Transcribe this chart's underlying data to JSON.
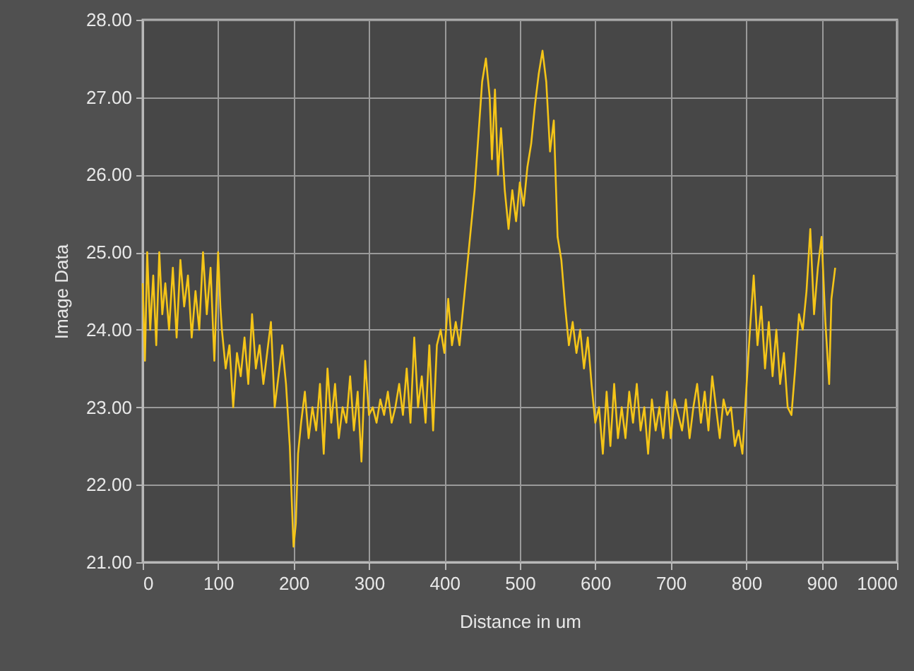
{
  "chart_data": {
    "type": "line",
    "xlabel": "Distance in um",
    "ylabel": "Image Data",
    "xlim": [
      0,
      1000
    ],
    "xticks": [
      0,
      100,
      200,
      300,
      400,
      500,
      600,
      700,
      800,
      900,
      1000
    ],
    "ylim": [
      21,
      28
    ],
    "yticks": [
      {
        "value": 21,
        "label": "21.00"
      },
      {
        "value": 22,
        "label": "22.00"
      },
      {
        "value": 23,
        "label": "23.00"
      },
      {
        "value": 24,
        "label": "24.00"
      },
      {
        "value": 25,
        "label": "25.00"
      },
      {
        "value": 26,
        "label": "26.00"
      },
      {
        "value": 27,
        "label": "27.00"
      },
      {
        "value": 28,
        "label": "28.00"
      }
    ],
    "grid": true,
    "x": [
      0,
      3,
      6,
      10,
      14,
      18,
      22,
      26,
      30,
      35,
      40,
      45,
      50,
      55,
      60,
      65,
      70,
      75,
      80,
      85,
      90,
      95,
      100,
      103,
      105,
      110,
      115,
      120,
      125,
      130,
      135,
      140,
      145,
      150,
      155,
      160,
      165,
      170,
      175,
      180,
      185,
      190,
      195,
      198,
      200,
      203,
      206,
      210,
      215,
      220,
      225,
      230,
      235,
      240,
      245,
      250,
      255,
      260,
      265,
      270,
      275,
      280,
      285,
      290,
      295,
      300,
      305,
      310,
      315,
      320,
      325,
      330,
      335,
      340,
      345,
      350,
      355,
      360,
      365,
      370,
      375,
      380,
      385,
      390,
      395,
      400,
      405,
      410,
      415,
      420,
      425,
      430,
      435,
      440,
      445,
      450,
      455,
      460,
      463,
      467,
      471,
      475,
      480,
      485,
      490,
      495,
      500,
      505,
      510,
      515,
      520,
      525,
      530,
      535,
      540,
      545,
      550,
      555,
      560,
      565,
      570,
      575,
      580,
      585,
      590,
      595,
      600,
      605,
      610,
      615,
      620,
      625,
      630,
      635,
      640,
      645,
      650,
      655,
      660,
      665,
      670,
      675,
      680,
      685,
      690,
      695,
      700,
      705,
      710,
      715,
      720,
      725,
      730,
      735,
      740,
      745,
      750,
      755,
      760,
      765,
      770,
      775,
      780,
      785,
      790,
      795,
      800,
      805,
      810,
      815,
      820,
      825,
      830,
      835,
      840,
      845,
      850,
      855,
      860,
      865,
      870,
      875,
      880,
      885,
      890,
      895,
      900,
      905,
      910,
      913,
      918
    ],
    "series": [
      {
        "color": "#f5c518",
        "values": [
          24.6,
          23.6,
          25.0,
          24.0,
          24.7,
          23.8,
          25.0,
          24.2,
          24.6,
          24.0,
          24.8,
          23.9,
          24.9,
          24.3,
          24.7,
          23.9,
          24.5,
          24.0,
          25.0,
          24.2,
          24.8,
          23.6,
          25.0,
          24.3,
          24.0,
          23.5,
          23.8,
          23.0,
          23.7,
          23.4,
          23.9,
          23.3,
          24.2,
          23.5,
          23.8,
          23.3,
          23.7,
          24.1,
          23.0,
          23.4,
          23.8,
          23.3,
          22.5,
          21.7,
          21.2,
          21.5,
          22.4,
          22.8,
          23.2,
          22.6,
          23.0,
          22.7,
          23.3,
          22.4,
          23.5,
          22.8,
          23.3,
          22.6,
          23.0,
          22.8,
          23.4,
          22.7,
          23.2,
          22.3,
          23.6,
          22.9,
          23.0,
          22.8,
          23.1,
          22.9,
          23.2,
          22.8,
          23.0,
          23.3,
          22.9,
          23.5,
          22.8,
          23.9,
          23.0,
          23.4,
          22.8,
          23.8,
          22.7,
          23.8,
          24.0,
          23.7,
          24.4,
          23.8,
          24.1,
          23.8,
          24.3,
          24.8,
          25.3,
          25.8,
          26.5,
          27.2,
          27.5,
          27.0,
          26.2,
          27.1,
          26.0,
          26.6,
          25.8,
          25.3,
          25.8,
          25.4,
          25.9,
          25.6,
          26.1,
          26.4,
          26.9,
          27.3,
          27.6,
          27.2,
          26.3,
          26.7,
          25.2,
          24.9,
          24.3,
          23.8,
          24.1,
          23.7,
          24.0,
          23.5,
          23.9,
          23.3,
          22.8,
          23.0,
          22.4,
          23.2,
          22.5,
          23.3,
          22.6,
          23.0,
          22.6,
          23.2,
          22.8,
          23.3,
          22.7,
          23.0,
          22.4,
          23.1,
          22.7,
          23.0,
          22.6,
          23.2,
          22.6,
          23.1,
          22.9,
          22.7,
          23.1,
          22.6,
          23.0,
          23.3,
          22.8,
          23.2,
          22.7,
          23.4,
          23.0,
          22.6,
          23.1,
          22.9,
          23.0,
          22.5,
          22.7,
          22.4,
          23.2,
          24.0,
          24.7,
          23.8,
          24.3,
          23.5,
          24.1,
          23.4,
          24.0,
          23.3,
          23.7,
          23.0,
          22.9,
          23.5,
          24.2,
          24.0,
          24.5,
          25.3,
          24.2,
          24.8,
          25.2,
          24.1,
          23.3,
          24.4,
          24.8
        ]
      }
    ]
  }
}
